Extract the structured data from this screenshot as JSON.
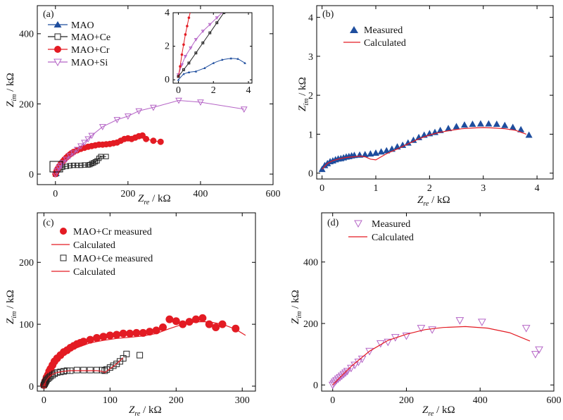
{
  "colors": {
    "mao": "#1f4e9e",
    "ce": "#222222",
    "cr": "#e31b23",
    "si": "#b565c6",
    "calc": "#e31b23"
  },
  "chart_data": [
    {
      "panel": "(a)",
      "type": "line",
      "xlabel": {
        "main": "Z",
        "sub": "re",
        "unit": " / kΩ"
      },
      "ylabel": {
        "main": "Z",
        "sub": "im",
        "unit": " / kΩ"
      },
      "xlim": [
        -50,
        600
      ],
      "ylim": [
        -30,
        480
      ],
      "xticks": [
        "0",
        "200",
        "400",
        "600"
      ],
      "yticks": [
        "0",
        "200",
        "400"
      ],
      "legend_position": "top-left",
      "series": [
        {
          "name": "MAO",
          "marker": "triangle-up",
          "color": "#1f4e9e",
          "x": [
            0,
            0.3,
            0.6,
            1,
            1.5,
            2,
            2.5,
            3,
            3.4,
            3.8
          ],
          "y": [
            0,
            0.35,
            0.45,
            0.5,
            0.7,
            1.0,
            1.2,
            1.28,
            1.25,
            1.0
          ]
        },
        {
          "name": "MAO+Ce",
          "marker": "square-open",
          "color": "#222222",
          "x": [
            0,
            3,
            6,
            10,
            20,
            30,
            40,
            50,
            60,
            70,
            80,
            90,
            95,
            100,
            105,
            110,
            115,
            120,
            125,
            140
          ],
          "y": [
            0,
            8,
            12,
            16,
            20,
            22,
            24,
            25,
            25,
            25,
            26,
            26,
            27,
            30,
            32,
            35,
            38,
            45,
            50,
            50
          ]
        },
        {
          "name": "MAO+Cr",
          "marker": "circle",
          "color": "#e31b23",
          "x": [
            0,
            3,
            6,
            10,
            15,
            20,
            25,
            30,
            35,
            40,
            45,
            50,
            60,
            70,
            80,
            90,
            100,
            110,
            120,
            130,
            140,
            150,
            160,
            170,
            180,
            190,
            200,
            210,
            220,
            230,
            240,
            250,
            270,
            290
          ],
          "y": [
            0,
            8,
            15,
            22,
            30,
            36,
            42,
            47,
            52,
            56,
            60,
            63,
            68,
            72,
            75,
            78,
            80,
            82,
            84,
            84,
            85,
            86,
            88,
            90,
            95,
            100,
            102,
            100,
            104,
            108,
            110,
            100,
            95,
            92
          ]
        },
        {
          "name": "MAO+Si",
          "marker": "triangle-down-open",
          "color": "#b565c6",
          "x": [
            0,
            5,
            10,
            15,
            20,
            30,
            40,
            50,
            60,
            70,
            80,
            90,
            100,
            130,
            170,
            200,
            230,
            270,
            340,
            400,
            520
          ],
          "y": [
            0,
            10,
            18,
            24,
            32,
            42,
            52,
            60,
            70,
            80,
            90,
            100,
            110,
            135,
            155,
            165,
            180,
            190,
            210,
            205,
            185
          ]
        }
      ],
      "inset": {
        "xlim": [
          -0.3,
          4.2
        ],
        "ylim": [
          -0.2,
          4
        ],
        "xticks": [
          "0",
          "2",
          "4"
        ],
        "yticks": [
          "0",
          "2",
          "4"
        ]
      }
    },
    {
      "panel": "(b)",
      "type": "scatter",
      "xlabel": {
        "main": "Z",
        "sub": "re",
        "unit": " / kΩ"
      },
      "ylabel": {
        "main": "Z",
        "sub": "im",
        "unit": " / kΩ"
      },
      "xlim": [
        -0.1,
        4.3
      ],
      "ylim": [
        -0.15,
        4.3
      ],
      "xticks": [
        "0",
        "1",
        "2",
        "3",
        "4"
      ],
      "yticks": [
        "0",
        "1",
        "2",
        "3",
        "4"
      ],
      "legend_position": "top-center",
      "series": [
        {
          "name": "Measured",
          "marker": "triangle-up",
          "color": "#1f4e9e",
          "x": [
            0,
            0.05,
            0.1,
            0.15,
            0.2,
            0.25,
            0.3,
            0.35,
            0.4,
            0.45,
            0.5,
            0.55,
            0.6,
            0.7,
            0.8,
            0.9,
            1.0,
            1.1,
            1.2,
            1.3,
            1.4,
            1.5,
            1.6,
            1.7,
            1.8,
            1.9,
            2.0,
            2.1,
            2.2,
            2.35,
            2.5,
            2.65,
            2.8,
            2.95,
            3.1,
            3.25,
            3.4,
            3.55,
            3.7,
            3.85
          ],
          "y": [
            0.1,
            0.2,
            0.25,
            0.3,
            0.32,
            0.35,
            0.37,
            0.38,
            0.4,
            0.42,
            0.43,
            0.45,
            0.46,
            0.47,
            0.48,
            0.5,
            0.52,
            0.55,
            0.58,
            0.62,
            0.68,
            0.72,
            0.78,
            0.85,
            0.92,
            0.98,
            1.02,
            1.05,
            1.1,
            1.15,
            1.2,
            1.24,
            1.26,
            1.27,
            1.27,
            1.26,
            1.23,
            1.18,
            1.12,
            0.98
          ]
        },
        {
          "name": "Calculated",
          "marker": "line",
          "color": "#e31b23",
          "x": [
            0,
            0.1,
            0.2,
            0.3,
            0.4,
            0.5,
            0.6,
            0.7,
            0.8,
            0.9,
            1.0,
            1.1,
            1.2,
            1.4,
            1.6,
            1.8,
            2.0,
            2.2,
            2.4,
            2.6,
            2.8,
            3.0,
            3.2,
            3.4,
            3.6,
            3.8
          ],
          "y": [
            0.1,
            0.25,
            0.32,
            0.36,
            0.39,
            0.41,
            0.42,
            0.44,
            0.42,
            0.36,
            0.34,
            0.42,
            0.5,
            0.62,
            0.75,
            0.88,
            0.98,
            1.05,
            1.1,
            1.14,
            1.16,
            1.17,
            1.16,
            1.14,
            1.1,
            1.0
          ]
        }
      ]
    },
    {
      "panel": "(c)",
      "type": "scatter",
      "xlabel": {
        "main": "Z",
        "sub": "re",
        "unit": " / kΩ"
      },
      "ylabel": {
        "main": "Z",
        "sub": "im",
        "unit": " / kΩ"
      },
      "xlim": [
        -10,
        320
      ],
      "ylim": [
        -8,
        280
      ],
      "xticks": [
        "0",
        "100",
        "200",
        "300"
      ],
      "yticks": [
        "0",
        "100",
        "200"
      ],
      "legend_position": "top-left",
      "series": [
        {
          "name": "MAO+Cr measured",
          "marker": "circle",
          "color": "#e31b23",
          "x": [
            0,
            2,
            4,
            6,
            8,
            10,
            13,
            16,
            20,
            25,
            30,
            35,
            40,
            45,
            50,
            55,
            60,
            70,
            80,
            90,
            100,
            110,
            120,
            130,
            140,
            150,
            160,
            170,
            180,
            190,
            200,
            210,
            220,
            230,
            240,
            250,
            260,
            270,
            290
          ],
          "y": [
            2,
            8,
            14,
            18,
            24,
            28,
            34,
            40,
            45,
            50,
            55,
            58,
            62,
            65,
            68,
            70,
            72,
            75,
            78,
            80,
            82,
            83,
            85,
            85,
            86,
            86,
            88,
            90,
            95,
            108,
            105,
            100,
            104,
            108,
            110,
            100,
            95,
            100,
            93
          ]
        },
        {
          "name": "Calculated",
          "marker": "line",
          "color": "#e31b23",
          "x": [
            0,
            5,
            10,
            20,
            30,
            40,
            50,
            70,
            90,
            110,
            130,
            150,
            170,
            190,
            210,
            230,
            250,
            270,
            290,
            305
          ],
          "y": [
            0,
            15,
            26,
            40,
            50,
            57,
            62,
            70,
            74,
            77,
            79,
            81,
            85,
            93,
            100,
            104,
            104,
            100,
            92,
            82
          ]
        },
        {
          "name": "MAO+Ce measured",
          "marker": "square-open",
          "color": "#222222",
          "x": [
            0,
            1,
            2,
            3,
            4,
            6,
            8,
            10,
            13,
            16,
            20,
            25,
            30,
            35,
            40,
            50,
            60,
            70,
            80,
            88,
            92,
            95,
            100,
            105,
            110,
            115,
            120,
            125,
            145
          ],
          "y": [
            2,
            4,
            6,
            8,
            10,
            12,
            14,
            16,
            18,
            20,
            22,
            23,
            24,
            25,
            25,
            26,
            26,
            26,
            26,
            26,
            25,
            27,
            30,
            33,
            36,
            40,
            45,
            52,
            50
          ]
        },
        {
          "name": "Calculated",
          "marker": "line",
          "color": "#e31b23",
          "x": [
            0,
            3,
            6,
            10,
            15,
            20,
            30,
            40,
            50,
            60,
            70,
            80,
            88,
            92,
            96,
            100,
            105,
            110,
            115,
            120
          ],
          "y": [
            0,
            8,
            13,
            17,
            20,
            22,
            24,
            25,
            25,
            25,
            25,
            25,
            24,
            22,
            25,
            28,
            32,
            36,
            41,
            46
          ]
        }
      ]
    },
    {
      "panel": "(d)",
      "type": "scatter",
      "xlabel": {
        "main": "Z",
        "sub": "re",
        "unit": " / kΩ"
      },
      "ylabel": {
        "main": "Z",
        "sub": "im",
        "unit": " / kΩ"
      },
      "xlim": [
        -30,
        600
      ],
      "ylim": [
        -20,
        560
      ],
      "xticks": [
        "0",
        "200",
        "400",
        "600"
      ],
      "yticks": [
        "0",
        "200",
        "400"
      ],
      "legend_position": "top-left",
      "series": [
        {
          "name": "Measured",
          "marker": "triangle-down-open",
          "color": "#b565c6",
          "x": [
            0,
            3,
            6,
            10,
            15,
            20,
            25,
            30,
            35,
            40,
            50,
            60,
            70,
            80,
            100,
            130,
            150,
            170,
            200,
            240,
            270,
            345,
            405,
            525,
            550,
            560
          ],
          "y": [
            0,
            5,
            10,
            15,
            20,
            25,
            30,
            35,
            40,
            45,
            55,
            65,
            75,
            85,
            110,
            135,
            140,
            155,
            160,
            185,
            180,
            210,
            205,
            185,
            100,
            115
          ]
        },
        {
          "name": "Calculated",
          "marker": "line",
          "color": "#e31b23",
          "x": [
            0,
            20,
            50,
            100,
            150,
            200,
            250,
            300,
            360,
            420,
            480,
            535
          ],
          "y": [
            0,
            25,
            60,
            110,
            145,
            165,
            180,
            187,
            190,
            185,
            170,
            143
          ]
        }
      ]
    }
  ]
}
